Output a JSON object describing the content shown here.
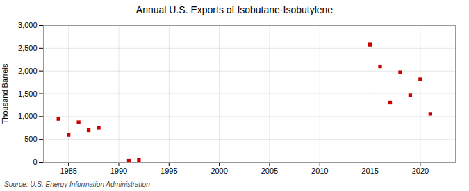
{
  "chart_data": {
    "type": "scatter",
    "title": "Annual U.S. Exports of Isobutane-Isobutylene",
    "ylabel": "Thousand Barrels",
    "source": "Source: U.S. Energy Information Administration",
    "x": [
      1984,
      1985,
      1986,
      1987,
      1988,
      1991,
      1992,
      2015,
      2016,
      2017,
      2018,
      2019,
      2020,
      2021
    ],
    "values": [
      950,
      600,
      875,
      700,
      755,
      30,
      45,
      2580,
      2100,
      1310,
      1970,
      1470,
      1820,
      1060
    ],
    "color": "#cc0000",
    "marker": "square",
    "xlim": [
      1982.5,
      2023.5
    ],
    "xticks": [
      1985,
      1990,
      1995,
      2000,
      2005,
      2010,
      2015,
      2020
    ],
    "ylim": [
      0,
      3000
    ],
    "yticks": [
      0,
      500,
      {
        "value": 1000,
        "label": "1,000"
      },
      {
        "value": 1500,
        "label": "1,500"
      },
      {
        "value": 2000,
        "label": "2,000"
      },
      {
        "value": 2500,
        "label": "2,500"
      },
      {
        "value": 3000,
        "label": "3,000"
      }
    ],
    "grid": true
  }
}
